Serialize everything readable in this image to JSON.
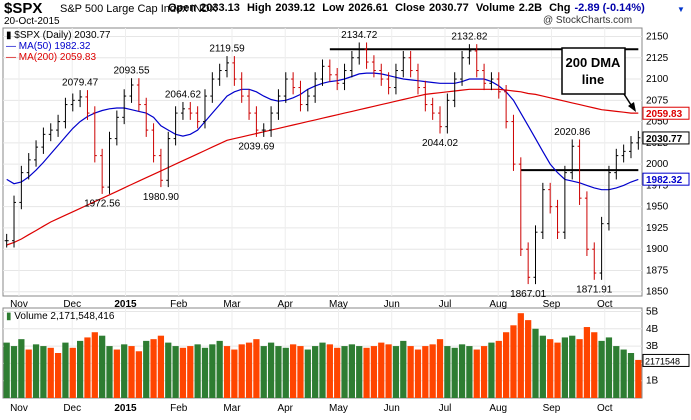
{
  "header": {
    "symbol": "$SPX",
    "name": "S&P 500 Large Cap Index INDX",
    "date": "20-Oct-2015",
    "watermark": "@ StockCharts.com",
    "open_label": "Open",
    "open": "2033.13",
    "high_label": "High",
    "high": "2039.12",
    "low_label": "Low",
    "low": "2026.61",
    "close_label": "Close",
    "close": "2030.77",
    "volume_label": "Volume",
    "volume": "2.2B",
    "chg_label": "Chg",
    "chg": "-2.89 (-0.14%)",
    "menu_icon": "dropdown-triangle-icon"
  },
  "legend": {
    "price": "$SPX (Daily) 2030.77",
    "ma50": "MA(50) 1982.32",
    "ma200": "MA(200) 2059.83",
    "volume": "Volume 2,171,548,416"
  },
  "annotation": {
    "line1": "200 DMA",
    "line2": "line"
  },
  "colors": {
    "up": "#000000",
    "down": "#cc0000",
    "ma50": "#0000cc",
    "ma200": "#dd0000",
    "vol_up": "#2e7d32",
    "vol_down": "#ff4500"
  },
  "chart_data": [
    {
      "type": "line",
      "title": "$SPX (Daily)",
      "ylim": [
        1845,
        2160
      ],
      "y_ticks": [
        1850,
        1875,
        1900,
        1925,
        1950,
        1975,
        2000,
        2025,
        2050,
        2075,
        2100,
        2125,
        2150
      ],
      "x_labels": [
        "Nov",
        "Dec",
        "2015",
        "Feb",
        "Mar",
        "Apr",
        "May",
        "Jun",
        "Jul",
        "Aug",
        "Sep",
        "Oct"
      ],
      "series": [
        {
          "name": "$SPX",
          "key": "price",
          "values": [
            1910,
            1955,
            1990,
            2005,
            2020,
            2035,
            2040,
            2050,
            2070,
            2075,
            2079,
            2060,
            2010,
            1973,
            2030,
            2055,
            2080,
            2093,
            2070,
            2040,
            2010,
            1981,
            2030,
            2060,
            2065,
            2060,
            2050,
            2080,
            2100,
            2110,
            2119,
            2100,
            2080,
            2060,
            2040,
            2040,
            2060,
            2080,
            2100,
            2090,
            2070,
            2080,
            2100,
            2115,
            2105,
            2095,
            2110,
            2125,
            2135,
            2120,
            2110,
            2100,
            2090,
            2110,
            2125,
            2110,
            2090,
            2070,
            2060,
            2044,
            2075,
            2100,
            2125,
            2133,
            2110,
            2095,
            2100,
            2085,
            2050,
            2000,
            1900,
            1867,
            1920,
            1970,
            1950,
            1920,
            1990,
            2021,
            1960,
            1900,
            1872,
            1930,
            1990,
            2010,
            2015,
            2025,
            2031
          ]
        },
        {
          "name": "MA(50)",
          "key": "ma50",
          "values": [
            1982,
            1977,
            1979,
            1985,
            1993,
            2002,
            2012,
            2022,
            2032,
            2042,
            2050,
            2056,
            2060,
            2063,
            2065,
            2066,
            2066,
            2064,
            2062,
            2060,
            2055,
            2045,
            2040,
            2035,
            2033,
            2035,
            2040,
            2050,
            2060,
            2070,
            2080,
            2085,
            2088,
            2088,
            2085,
            2080,
            2076,
            2074,
            2075,
            2078,
            2082,
            2088,
            2092,
            2095,
            2097,
            2098,
            2100,
            2103,
            2106,
            2107,
            2107,
            2106,
            2104,
            2102,
            2100,
            2099,
            2098,
            2097,
            2096,
            2095,
            2095,
            2095,
            2097,
            2100,
            2100,
            2100,
            2097,
            2092,
            2085,
            2075,
            2060,
            2045,
            2030,
            2015,
            2000,
            1990,
            1982,
            1980,
            1978,
            1975,
            1972,
            1970,
            1970,
            1972,
            1975,
            1979,
            1982
          ]
        },
        {
          "name": "MA(200)",
          "key": "ma200",
          "values": [
            1905,
            1908,
            1912,
            1917,
            1922,
            1927,
            1932,
            1936,
            1940,
            1944,
            1948,
            1952,
            1956,
            1960,
            1964,
            1968,
            1972,
            1976,
            1980,
            1984,
            1988,
            1992,
            1996,
            2000,
            2004,
            2008,
            2012,
            2016,
            2020,
            2024,
            2028,
            2030,
            2032,
            2034,
            2036,
            2038,
            2040,
            2042,
            2044,
            2046,
            2048,
            2050,
            2052,
            2054,
            2056,
            2058,
            2060,
            2062,
            2064,
            2066,
            2068,
            2070,
            2072,
            2074,
            2076,
            2078,
            2080,
            2082,
            2083,
            2084,
            2085,
            2086,
            2087,
            2088,
            2088,
            2088,
            2088,
            2088,
            2087,
            2086,
            2085,
            2083,
            2082,
            2080,
            2078,
            2076,
            2074,
            2072,
            2070,
            2068,
            2066,
            2064,
            2063,
            2062,
            2061,
            2060,
            2060
          ]
        }
      ],
      "point_labels": [
        {
          "label": "2079.47",
          "index": 10
        },
        {
          "label": "1972.56",
          "index": 13
        },
        {
          "label": "2093.55",
          "index": 17
        },
        {
          "label": "1980.90",
          "index": 21
        },
        {
          "label": "2064.62",
          "index": 24
        },
        {
          "label": "2119.59",
          "index": 30
        },
        {
          "label": "2039.69",
          "index": 34
        },
        {
          "label": "2134.72",
          "index": 48
        },
        {
          "label": "2044.02",
          "index": 59
        },
        {
          "label": "2132.82",
          "index": 63
        },
        {
          "label": "1867.01",
          "index": 71
        },
        {
          "label": "2020.86",
          "index": 77
        },
        {
          "label": "1871.91",
          "index": 80
        }
      ],
      "reference_lines": [
        {
          "value": 2135,
          "from_index": 44,
          "to_index": 86
        },
        {
          "value": 1993,
          "from_index": 70,
          "to_index": 86
        }
      ],
      "last_value_tags": [
        {
          "label": "2059.83",
          "value": 2059.83,
          "series": "ma200"
        },
        {
          "label": "2030.77",
          "value": 2030.77,
          "series": "price"
        },
        {
          "label": "1982.32",
          "value": 1982.32,
          "series": "ma50"
        }
      ]
    },
    {
      "type": "bar",
      "title": "Volume",
      "ylim": [
        0,
        5.2
      ],
      "y_ticks": [
        "1B",
        "2B",
        "3B",
        "4B",
        "5B"
      ],
      "last_value_tag": {
        "label": "2171548",
        "value": 2.17
      },
      "values": [
        3.2,
        3.0,
        3.4,
        2.8,
        3.1,
        3.0,
        2.9,
        2.6,
        3.2,
        2.9,
        3.3,
        3.5,
        3.8,
        3.6,
        3.0,
        2.8,
        3.1,
        3.0,
        2.7,
        3.3,
        3.4,
        3.6,
        3.2,
        3.0,
        2.9,
        3.0,
        3.1,
        2.9,
        3.1,
        3.3,
        3.0,
        2.8,
        3.1,
        3.2,
        3.4,
        3.0,
        3.2,
        3.0,
        2.9,
        3.1,
        3.0,
        2.8,
        3.0,
        3.2,
        3.1,
        2.9,
        3.0,
        3.1,
        3.0,
        2.9,
        3.0,
        3.2,
        3.1,
        3.0,
        3.3,
        3.0,
        2.8,
        3.0,
        3.1,
        3.4,
        3.0,
        2.9,
        3.1,
        3.0,
        2.8,
        3.0,
        3.2,
        3.3,
        3.8,
        4.2,
        4.9,
        4.5,
        4.0,
        3.6,
        3.4,
        3.2,
        3.5,
        3.6,
        3.4,
        4.1,
        3.8,
        3.3,
        3.5,
        3.0,
        2.8,
        2.6,
        2.2
      ],
      "up": [
        1,
        1,
        1,
        0,
        1,
        1,
        0,
        0,
        1,
        0,
        1,
        0,
        0,
        1,
        1,
        0,
        1,
        0,
        0,
        1,
        0,
        0,
        1,
        1,
        0,
        0,
        1,
        1,
        1,
        1,
        0,
        0,
        0,
        0,
        0,
        1,
        1,
        1,
        1,
        0,
        0,
        1,
        1,
        1,
        0,
        0,
        1,
        1,
        1,
        0,
        0,
        0,
        0,
        1,
        1,
        0,
        0,
        0,
        0,
        0,
        1,
        1,
        1,
        1,
        0,
        0,
        1,
        0,
        0,
        0,
        0,
        0,
        1,
        1,
        0,
        0,
        1,
        1,
        0,
        0,
        0,
        1,
        1,
        1,
        1,
        1,
        0
      ]
    }
  ]
}
